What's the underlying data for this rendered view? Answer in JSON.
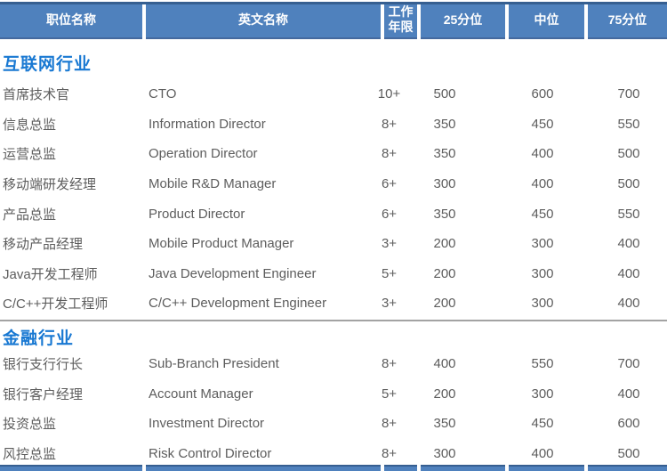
{
  "table": {
    "columns": [
      {
        "label": "职位名称"
      },
      {
        "label": "英文名称"
      },
      {
        "label": "工作年限"
      },
      {
        "label": "25分位"
      },
      {
        "label": "中位"
      },
      {
        "label": "75分位"
      }
    ],
    "sections": [
      {
        "title": "互联网行业",
        "rows": [
          {
            "position_cn": "首席技术官",
            "position_en": "CTO",
            "years": "10+",
            "p25": "500",
            "median": "600",
            "p75": "700"
          },
          {
            "position_cn": "信息总监",
            "position_en": "Information Director",
            "years": "8+",
            "p25": "350",
            "median": "450",
            "p75": "550"
          },
          {
            "position_cn": "运营总监",
            "position_en": "Operation Director",
            "years": "8+",
            "p25": "350",
            "median": "400",
            "p75": "500"
          },
          {
            "position_cn": "移动端研发经理",
            "position_en": "Mobile R&D Manager",
            "years": "6+",
            "p25": "300",
            "median": "400",
            "p75": "500"
          },
          {
            "position_cn": "产品总监",
            "position_en": "Product Director",
            "years": "6+",
            "p25": "350",
            "median": "450",
            "p75": "550"
          },
          {
            "position_cn": "移动产品经理",
            "position_en": "Mobile Product Manager",
            "years": "3+",
            "p25": "200",
            "median": "300",
            "p75": "400"
          },
          {
            "position_cn": "Java开发工程师",
            "position_en": "Java Development Engineer",
            "years": "5+",
            "p25": "200",
            "median": "300",
            "p75": "400"
          },
          {
            "position_cn": "C/C++开发工程师",
            "position_en": "C/C++ Development Engineer",
            "years": "3+",
            "p25": "200",
            "median": "300",
            "p75": "400"
          }
        ]
      },
      {
        "title": "金融行业",
        "rows": [
          {
            "position_cn": "银行支行行长",
            "position_en": "Sub-Branch President",
            "years": "8+",
            "p25": "400",
            "median": "550",
            "p75": "700"
          },
          {
            "position_cn": "银行客户经理",
            "position_en": "Account Manager",
            "years": "5+",
            "p25": "200",
            "median": "300",
            "p75": "400"
          },
          {
            "position_cn": "投资总监",
            "position_en": "Investment Director",
            "years": "8+",
            "p25": "350",
            "median": "450",
            "p75": "600"
          },
          {
            "position_cn": "风控总监",
            "position_en": "Risk Control Director",
            "years": "8+",
            "p25": "300",
            "median": "400",
            "p75": "500"
          }
        ]
      }
    ]
  },
  "colors": {
    "header_bg": "#4f81bd",
    "header_border_dark": "#365f91",
    "section_title_blue": "#1878d2",
    "body_text": "#5d5d5d",
    "divider_gray": "#a3a3a3"
  }
}
